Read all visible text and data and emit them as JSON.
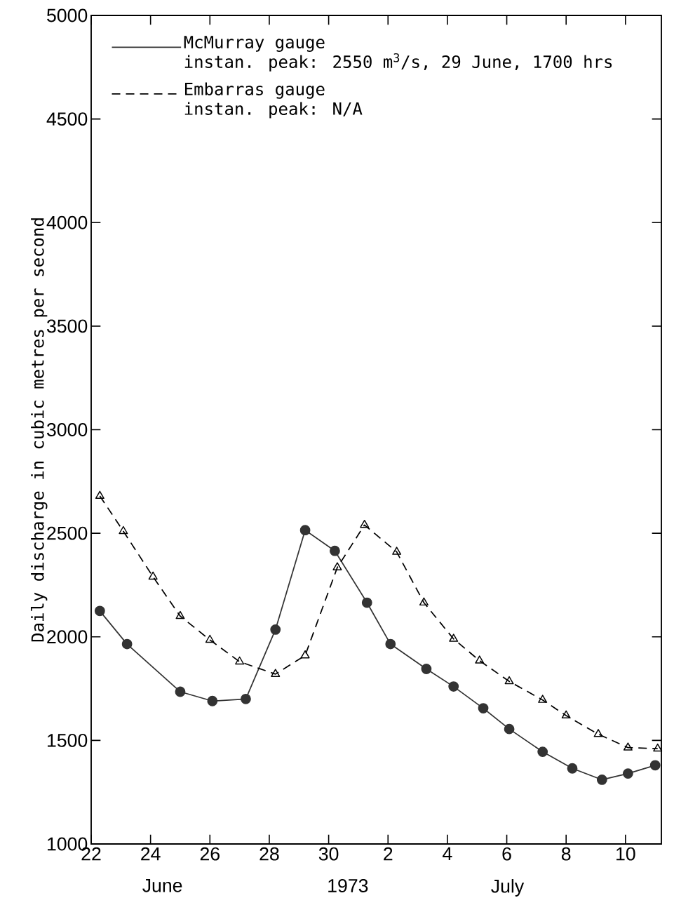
{
  "chart_data": {
    "type": "line",
    "xlabel": "1973",
    "ylabel": "Daily discharge in cubic metres per second",
    "annotations": [
      "instan. peak: 2550 m$^{3}$/s, 29 June, 1700 hrs",
      "instan. peak:  N/A",
      "June",
      "July"
    ],
    "series": [
      {
        "name": "McMurray gauge",
        "color": "#333333",
        "marker": "circle",
        "line_style": "solid",
        "x": [
          "1973-06-22T07:00",
          "1973-06-23T05:00",
          "1973-06-25",
          "1973-06-26T02:00",
          "1973-06-27T05:00",
          "1973-06-28T05:00",
          "1973-06-29T05:00",
          "1973-06-30T05:00",
          "1973-07-01T07:00",
          "1973-07-02T02:00",
          "1973-07-03T07:00",
          "1973-07-04T05:00",
          "1973-07-05T05:00",
          "1973-07-06T02:00",
          "1973-07-07T05:00",
          "1973-07-08T05:00",
          "1973-07-09T05:00",
          "1973-07-10T02:00",
          "1973-07-11"
        ],
        "values": [
          2125,
          1965,
          1735,
          1690,
          1700,
          2035,
          2515,
          2415,
          2165,
          1965,
          1845,
          1760,
          1655,
          1555,
          1445,
          1365,
          1310,
          1340,
          1380
        ]
      },
      {
        "name": "Embarras gauge",
        "color": "#000000",
        "marker": "triangle",
        "line_style": "dashed",
        "x": [
          "1973-06-22T07:00",
          "1973-06-23T02:00",
          "1973-06-24T02:00",
          "1973-06-25",
          "1973-06-26",
          "1973-06-27",
          "1973-06-28T05:00",
          "1973-06-29T05:00",
          "1973-06-30T07:00",
          "1973-07-01T05:00",
          "1973-07-02T07:00",
          "1973-07-03T05:00",
          "1973-07-04T05:00",
          "1973-07-05T02:00",
          "1973-07-06T02:00",
          "1973-07-07T05:00",
          "1973-07-08",
          "1973-07-09T02:00",
          "1973-07-10T02:00",
          "1973-07-11T02:00"
        ],
        "values": [
          2680,
          2510,
          2290,
          2100,
          1985,
          1880,
          1820,
          1910,
          2335,
          2540,
          2410,
          2165,
          1990,
          1885,
          1785,
          1695,
          1620,
          1530,
          1465,
          1460
        ]
      }
    ],
    "xlim": [
      "1973-06-22",
      "1973-07-11T05:00"
    ],
    "xticks": [
      {
        "value": "1973-06-22",
        "label": "22"
      },
      {
        "value": "1973-06-24",
        "label": "24"
      },
      {
        "value": "1973-06-26",
        "label": "26"
      },
      {
        "value": "1973-06-28",
        "label": "28"
      },
      {
        "value": "1973-06-30",
        "label": "30"
      },
      {
        "value": "1973-07-02",
        "label": "2"
      },
      {
        "value": "1973-07-04",
        "label": "4"
      },
      {
        "value": "1973-07-06",
        "label": "6"
      },
      {
        "value": "1973-07-08",
        "label": "8"
      },
      {
        "value": "1973-07-10",
        "label": "10"
      }
    ],
    "ylim": [
      1000,
      5000
    ],
    "yticks": [
      1000,
      1500,
      2000,
      2500,
      3000,
      3500,
      4000,
      4500,
      5000
    ],
    "legend": "top left"
  }
}
